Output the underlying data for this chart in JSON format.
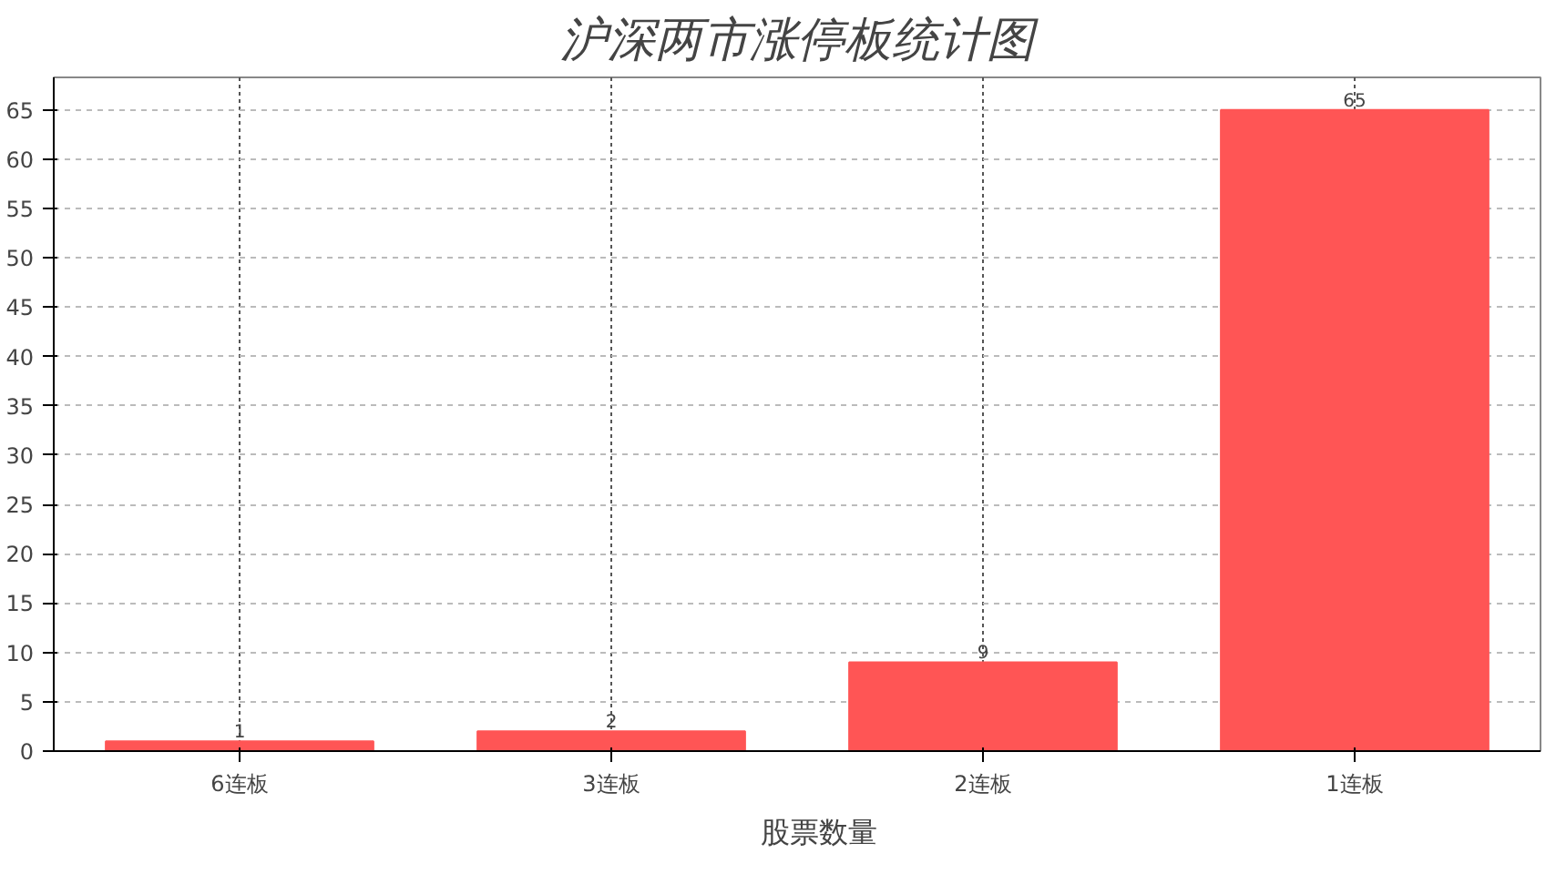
{
  "chart_data": {
    "type": "bar",
    "title": "沪深两市涨停板统计图",
    "categories": [
      "6连板",
      "3连板",
      "2连板",
      "1连板"
    ],
    "series": [
      {
        "name": "股票数量",
        "color": "#ff5555",
        "values": [
          1,
          2,
          9,
          65
        ]
      }
    ],
    "ylim": [
      0,
      68.3
    ],
    "yticks": [
      0,
      5,
      10,
      15,
      20,
      25,
      30,
      35,
      40,
      45,
      50,
      55,
      60,
      65
    ],
    "grid": true,
    "legend": "bottom",
    "data_labels": true
  }
}
